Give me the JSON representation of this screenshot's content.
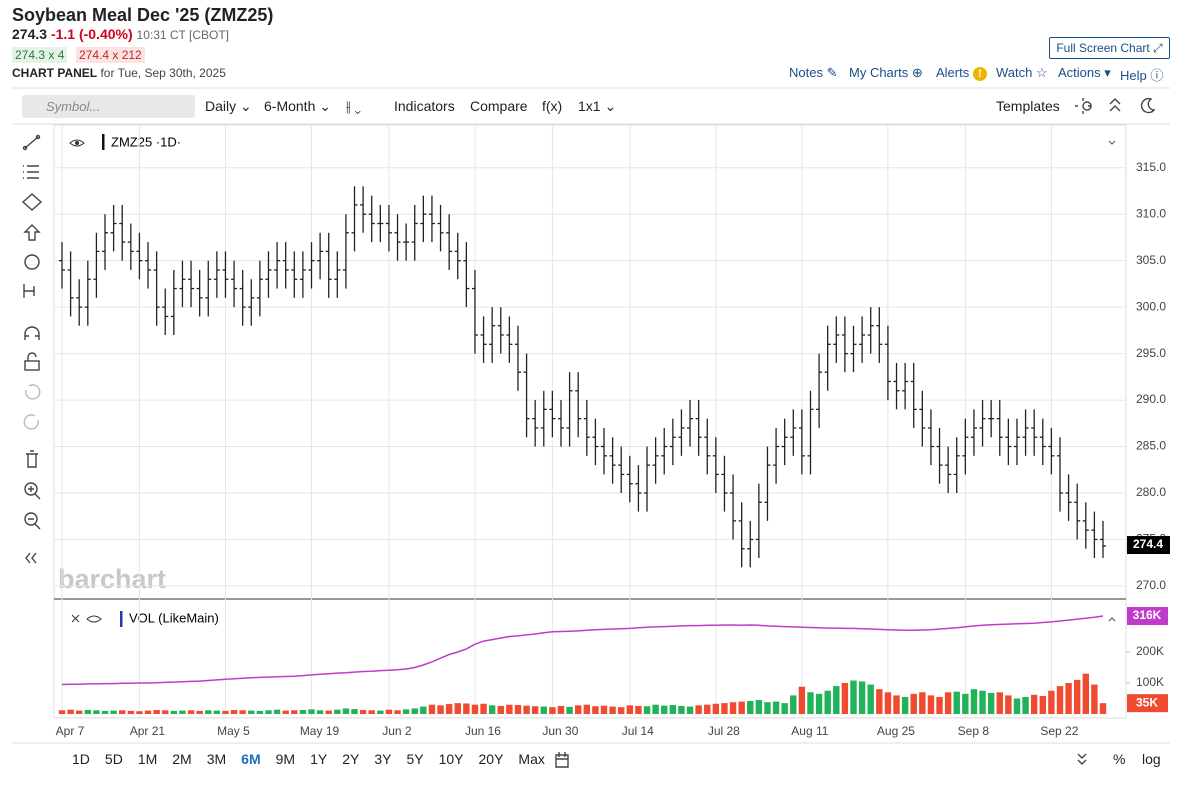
{
  "header": {
    "title": "Soybean Meal Dec '25 (ZMZ25)",
    "last": "274.3",
    "change": "-1.1 (-0.40%)",
    "time": "10:31 CT [CBOT]",
    "bid": "274.3 x 4",
    "ask": "274.4 x 212",
    "panel": "CHART PANEL",
    "panel_date": "for Tue, Sep 30th, 2025"
  },
  "links": {
    "full_screen": "Full Screen Chart",
    "notes": "Notes",
    "my_charts": "My Charts",
    "alerts": "Alerts",
    "watch": "Watch",
    "actions": "Actions",
    "help": "Help"
  },
  "toolbar": {
    "symbol_placeholder": "Symbol...",
    "interval": "Daily",
    "range": "6-Month",
    "indicators": "Indicators",
    "compare": "Compare",
    "fx": "f(x)",
    "layout": "1x1",
    "templates": "Templates"
  },
  "watermark": "barchart",
  "periods": [
    "1D",
    "5D",
    "1M",
    "2M",
    "3M",
    "6M",
    "9M",
    "1Y",
    "2Y",
    "3Y",
    "5Y",
    "10Y",
    "20Y",
    "Max"
  ],
  "active_period": "6M",
  "footer": {
    "percent": "%",
    "log": "log"
  },
  "chart_data": [
    {
      "type": "ohlc",
      "title": "ZMZ25 ·1D·",
      "color": "#222222",
      "open": [
        305,
        304,
        301,
        300,
        303,
        306,
        308,
        309,
        307,
        306,
        305,
        304,
        300,
        299,
        302,
        303,
        302,
        301,
        303,
        304,
        303,
        302,
        300,
        301,
        303,
        304,
        305,
        304,
        303,
        304,
        305,
        306,
        303,
        304,
        308,
        311,
        310,
        309,
        309,
        308,
        307,
        307,
        309,
        310,
        309,
        308,
        306,
        305,
        302,
        297,
        296,
        298,
        297,
        296,
        293,
        288,
        287,
        289,
        288,
        287,
        291,
        288,
        286,
        285,
        284,
        283,
        282,
        281,
        280,
        283,
        284,
        285,
        286,
        287,
        288,
        286,
        284,
        282,
        280,
        277,
        274,
        275,
        279,
        283,
        285,
        286,
        287,
        284,
        289,
        293,
        296,
        297,
        295,
        296,
        297,
        298,
        296,
        292,
        291,
        292,
        289,
        287,
        285,
        283,
        282,
        284,
        286,
        287,
        288,
        288,
        286,
        285,
        286,
        287,
        286,
        285,
        284,
        280,
        279,
        277,
        276,
        275
      ],
      "high": [
        307,
        306,
        303,
        305,
        308,
        310,
        311,
        311,
        309,
        308,
        307,
        306,
        302,
        304,
        305,
        305,
        304,
        305,
        306,
        306,
        305,
        304,
        303,
        305,
        306,
        307,
        307,
        306,
        306,
        307,
        308,
        308,
        306,
        310,
        313,
        313,
        312,
        311,
        311,
        310,
        309,
        311,
        312,
        312,
        311,
        310,
        308,
        307,
        304,
        299,
        300,
        300,
        299,
        298,
        295,
        290,
        291,
        291,
        290,
        293,
        293,
        290,
        288,
        287,
        286,
        285,
        284,
        283,
        285,
        286,
        287,
        288,
        289,
        290,
        290,
        288,
        286,
        284,
        282,
        279,
        277,
        281,
        285,
        287,
        288,
        289,
        289,
        291,
        295,
        298,
        299,
        299,
        298,
        299,
        300,
        300,
        298,
        294,
        294,
        294,
        291,
        289,
        287,
        285,
        286,
        288,
        289,
        290,
        290,
        290,
        288,
        288,
        289,
        289,
        288,
        287,
        286,
        282,
        281,
        279,
        278,
        277
      ],
      "low": [
        302,
        299,
        298,
        298,
        301,
        304,
        306,
        305,
        304,
        303,
        302,
        298,
        297,
        297,
        300,
        300,
        299,
        299,
        301,
        301,
        300,
        298,
        298,
        299,
        301,
        302,
        302,
        301,
        301,
        302,
        303,
        301,
        301,
        302,
        306,
        308,
        307,
        307,
        306,
        305,
        305,
        305,
        307,
        307,
        306,
        304,
        303,
        300,
        295,
        294,
        294,
        295,
        294,
        291,
        286,
        285,
        285,
        286,
        285,
        285,
        286,
        284,
        283,
        282,
        281,
        280,
        279,
        278,
        278,
        281,
        282,
        283,
        284,
        285,
        284,
        282,
        280,
        278,
        275,
        272,
        272,
        273,
        277,
        281,
        283,
        284,
        282,
        282,
        287,
        291,
        294,
        293,
        293,
        294,
        295,
        294,
        290,
        289,
        289,
        287,
        285,
        283,
        281,
        280,
        280,
        282,
        284,
        285,
        286,
        284,
        283,
        283,
        284,
        284,
        283,
        282,
        278,
        277,
        275,
        274,
        273,
        273
      ],
      "close": [
        304,
        301,
        300,
        303,
        306,
        308,
        309,
        307,
        306,
        305,
        304,
        300,
        299,
        302,
        303,
        302,
        301,
        303,
        304,
        303,
        302,
        300,
        301,
        303,
        304,
        305,
        304,
        303,
        304,
        305,
        306,
        303,
        304,
        308,
        311,
        310,
        309,
        309,
        308,
        307,
        307,
        309,
        310,
        309,
        308,
        306,
        305,
        302,
        297,
        296,
        298,
        297,
        296,
        293,
        288,
        287,
        289,
        288,
        287,
        291,
        288,
        286,
        285,
        284,
        283,
        282,
        281,
        280,
        283,
        284,
        285,
        286,
        287,
        288,
        286,
        284,
        282,
        280,
        277,
        274,
        275,
        279,
        283,
        285,
        286,
        287,
        284,
        289,
        293,
        296,
        297,
        295,
        296,
        297,
        298,
        296,
        292,
        291,
        292,
        289,
        287,
        285,
        283,
        282,
        284,
        286,
        287,
        288,
        288,
        286,
        285,
        286,
        287,
        286,
        285,
        284,
        280,
        279,
        277,
        276,
        275,
        274.3
      ],
      "last_price": 274.4,
      "ylim": [
        268.7,
        319.6
      ],
      "yticks": [
        {
          "value": 270,
          "label": "270.0"
        },
        {
          "value": 275,
          "label": "275.0"
        },
        {
          "value": 280,
          "label": "280.0"
        },
        {
          "value": 285,
          "label": "285.0"
        },
        {
          "value": 290,
          "label": "290.0"
        },
        {
          "value": 295,
          "label": "295.0"
        },
        {
          "value": 300,
          "label": "300.0"
        },
        {
          "value": 305,
          "label": "305.0"
        },
        {
          "value": 310,
          "label": "310.0"
        },
        {
          "value": 315,
          "label": "315.0"
        }
      ],
      "xticks": [
        {
          "value": 0,
          "label": "Apr 7"
        },
        {
          "value": 9,
          "label": "Apr 21"
        },
        {
          "value": 19,
          "label": "May 5"
        },
        {
          "value": 29,
          "label": "May 19"
        },
        {
          "value": 38,
          "label": "Jun 2"
        },
        {
          "value": 48,
          "label": "Jun 16"
        },
        {
          "value": 57,
          "label": "Jun 30"
        },
        {
          "value": 66,
          "label": "Jul 14"
        },
        {
          "value": 76,
          "label": "Jul 28"
        },
        {
          "value": 86,
          "label": "Aug 11"
        },
        {
          "value": 96,
          "label": "Aug 25"
        },
        {
          "value": 105,
          "label": "Sep 8"
        },
        {
          "value": 115,
          "label": "Sep 22"
        }
      ],
      "grid": true
    },
    {
      "type": "volume",
      "title": "VOL (LikeMain)",
      "up_color": "#22b35a",
      "down_color": "#f04a30",
      "line_color": "#c03cc8",
      "values": [
        12,
        14,
        11,
        13,
        12,
        10,
        11,
        12,
        10,
        9,
        11,
        13,
        12,
        10,
        11,
        12,
        10,
        12,
        11,
        10,
        13,
        12,
        11,
        10,
        12,
        14,
        11,
        12,
        13,
        15,
        12,
        11,
        14,
        18,
        16,
        13,
        12,
        11,
        14,
        12,
        15,
        18,
        24,
        30,
        28,
        32,
        35,
        34,
        30,
        33,
        28,
        26,
        30,
        29,
        27,
        25,
        24,
        22,
        26,
        23,
        28,
        30,
        25,
        27,
        24,
        22,
        28,
        26,
        25,
        30,
        27,
        29,
        26,
        24,
        28,
        30,
        33,
        35,
        38,
        40,
        42,
        45,
        38,
        40,
        35,
        60,
        88,
        70,
        65,
        75,
        90,
        100,
        108,
        105,
        95,
        80,
        70,
        60,
        55,
        65,
        70,
        60,
        55,
        70,
        72,
        65,
        80,
        75,
        68,
        70,
        60,
        50,
        55,
        62,
        58,
        75,
        90,
        100,
        110,
        130,
        95,
        35
      ],
      "line_values": [
        95,
        96,
        96,
        97,
        97,
        98,
        98,
        99,
        99,
        100,
        100,
        101,
        102,
        103,
        104,
        105,
        106,
        108,
        110,
        112,
        114,
        115,
        117,
        118,
        119,
        120,
        121,
        122,
        124,
        126,
        128,
        130,
        132,
        133,
        135,
        137,
        138,
        140,
        141,
        143,
        145,
        150,
        158,
        168,
        180,
        192,
        200,
        210,
        225,
        235,
        240,
        245,
        250,
        252,
        255,
        258,
        262,
        265,
        266,
        267,
        268,
        270,
        272,
        273,
        274,
        275,
        276,
        278,
        280,
        281,
        282,
        283,
        284,
        285,
        285,
        286,
        286,
        287,
        287,
        286,
        287,
        286,
        284,
        283,
        282,
        281,
        280,
        279,
        278,
        277,
        277,
        276,
        276,
        275,
        274,
        273,
        272,
        271,
        270,
        270,
        271,
        272,
        274,
        276,
        278,
        281,
        284,
        286,
        288,
        289,
        290,
        291,
        292,
        293,
        295,
        297,
        300,
        303,
        306,
        309,
        312,
        316
      ],
      "ylim": [
        0,
        358
      ],
      "yticks": [
        {
          "value": 100,
          "label": "100K"
        },
        {
          "value": 200,
          "label": "200K"
        }
      ],
      "last_labels": [
        {
          "value": 316,
          "label": "316K"
        },
        {
          "value": 35,
          "label": "35K"
        }
      ]
    }
  ]
}
